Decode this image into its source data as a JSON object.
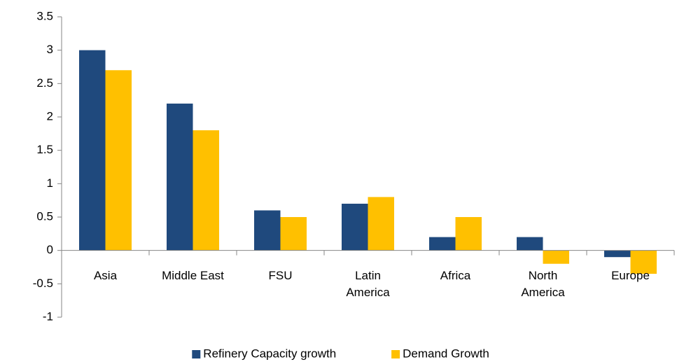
{
  "chart_data": {
    "type": "bar",
    "categories": [
      "Asia",
      "Middle East",
      "FSU",
      "Latin America",
      "Africa",
      "North America",
      "Europe"
    ],
    "series": [
      {
        "name": "Refinery Capacity growth",
        "color": "#1f497d",
        "values": [
          3,
          2.2,
          0.6,
          0.7,
          0.2,
          0.2,
          -0.1
        ]
      },
      {
        "name": "Demand Growth",
        "color": "#ffc000",
        "values": [
          2.7,
          1.8,
          0.5,
          0.8,
          0.5,
          -0.2,
          -0.35
        ]
      }
    ],
    "ylim": [
      -1,
      3.5
    ],
    "yticks": [
      -1,
      -0.5,
      0,
      0.5,
      1,
      1.5,
      2,
      2.5,
      3,
      3.5
    ],
    "legend": "bottom"
  }
}
